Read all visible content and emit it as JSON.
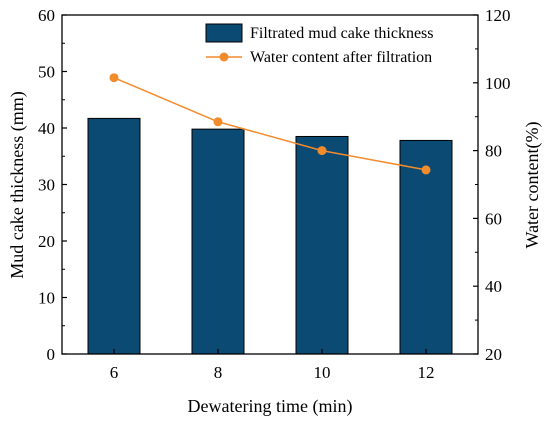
{
  "chart_data": {
    "type": "bar",
    "categories": [
      "6",
      "8",
      "10",
      "12"
    ],
    "xlabel": "Dewatering time (min)",
    "ylabel": "Mud cake thickness (mm)",
    "y2label": "Water content(%)",
    "ylim": [
      0,
      60
    ],
    "y2lim": [
      20,
      120
    ],
    "yticks": [
      "0",
      "10",
      "20",
      "30",
      "40",
      "50",
      "60"
    ],
    "y2ticks": [
      "20",
      "40",
      "60",
      "80",
      "100",
      "120"
    ],
    "series": [
      {
        "name": "Filtrated mud cake thickness",
        "kind": "bar",
        "axis": "left",
        "color": "#0b4a72",
        "values": [
          41.7,
          39.8,
          38.5,
          37.8
        ]
      },
      {
        "name": "Water content after filtration",
        "kind": "line",
        "axis": "right",
        "color": "#f28b2c",
        "values": [
          101.5,
          88.5,
          80,
          74.3
        ]
      }
    ],
    "legend_position": "top-right",
    "grid": false
  }
}
